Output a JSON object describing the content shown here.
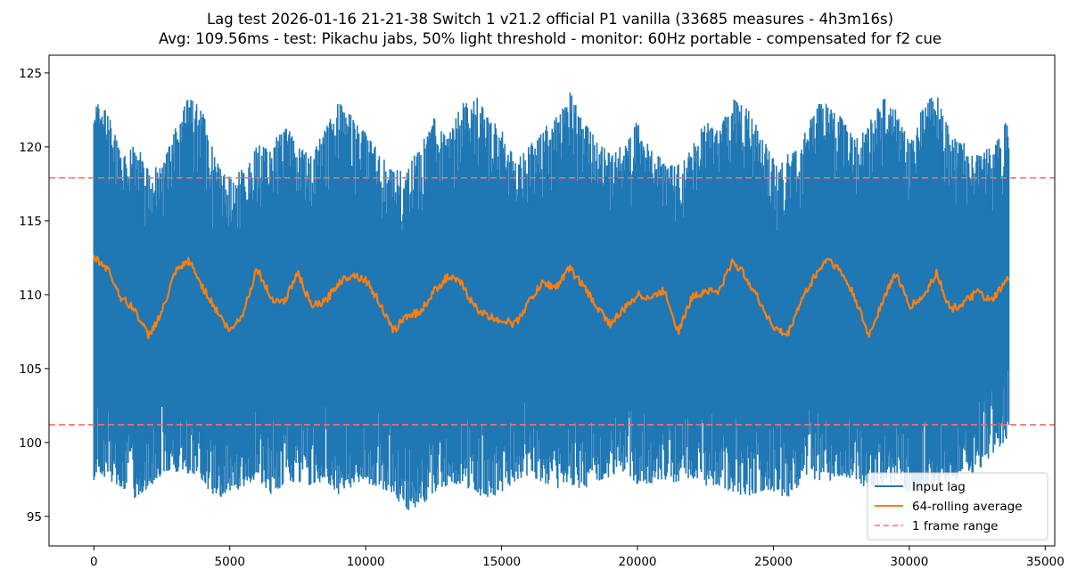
{
  "chart_data": {
    "type": "line",
    "title": "Lag test 2026-01-16 21-21-38 Switch 1 v21.2 official P1 vanilla (33685 measures - 4h3m16s)",
    "subtitle": "Avg: 109.56ms - test: Pikachu jabs, 50% light threshold - monitor: 60Hz portable - compensated for f2 cue",
    "xlabel": "",
    "ylabel": "",
    "xlim": [
      -1650,
      35350
    ],
    "ylim": [
      93,
      126.2
    ],
    "x_ticks": [
      0,
      5000,
      10000,
      15000,
      20000,
      25000,
      30000,
      35000
    ],
    "x_tick_labels": [
      "0",
      "5000",
      "10000",
      "15000",
      "20000",
      "25000",
      "30000",
      "35000"
    ],
    "y_ticks": [
      95,
      100,
      105,
      110,
      115,
      120,
      125
    ],
    "y_tick_labels": [
      "95",
      "100",
      "105",
      "110",
      "115",
      "120",
      "125"
    ],
    "grid": false,
    "legend_position": "lower-right",
    "threshold_lines": {
      "name": "1 frame range",
      "values": [
        101.2,
        117.9
      ],
      "color": "#ff6b6b",
      "style": "dashed"
    },
    "series": [
      {
        "name": "Input lag",
        "color": "#1f77b4",
        "type": "envelope",
        "x": [
          0,
          500,
          1000,
          1500,
          2000,
          2500,
          3000,
          3500,
          4000,
          4500,
          5000,
          5500,
          6000,
          6500,
          7000,
          7500,
          8000,
          8500,
          9000,
          9500,
          10000,
          10500,
          11000,
          11500,
          12000,
          12500,
          13000,
          13500,
          14000,
          14500,
          15000,
          15500,
          16000,
          16500,
          17000,
          17500,
          18000,
          18500,
          19000,
          19500,
          20000,
          20500,
          21000,
          21500,
          22000,
          22500,
          23000,
          23500,
          24000,
          24500,
          25000,
          25500,
          26000,
          26500,
          27000,
          27500,
          28000,
          28500,
          29000,
          29500,
          30000,
          30500,
          31000,
          31500,
          32000,
          32500,
          33000,
          33685
        ],
        "max": [
          123.1,
          122.5,
          119.5,
          120.2,
          119.0,
          118.5,
          121.5,
          123.4,
          122.5,
          119.0,
          118.0,
          118.6,
          120.2,
          119.8,
          121.8,
          120.0,
          119.5,
          121.2,
          123.0,
          122.2,
          121.0,
          119.8,
          118.4,
          118.6,
          120.0,
          122.0,
          120.5,
          122.8,
          123.7,
          122.0,
          121.2,
          119.5,
          120.0,
          121.2,
          122.0,
          123.8,
          121.8,
          120.5,
          119.6,
          120.3,
          121.8,
          120.0,
          119.0,
          118.8,
          120.0,
          121.8,
          121.0,
          123.5,
          122.8,
          121.0,
          119.2,
          119.5,
          120.2,
          122.8,
          123.1,
          122.0,
          120.5,
          121.5,
          123.5,
          122.5,
          120.5,
          123.0,
          123.6,
          121.0,
          120.3,
          119.5,
          120.0,
          122.1
        ],
        "min": [
          97.3,
          97.5,
          97.0,
          96.2,
          96.8,
          97.8,
          98.0,
          97.9,
          97.2,
          96.2,
          96.5,
          97.0,
          97.5,
          96.5,
          97.1,
          97.3,
          97.0,
          97.5,
          96.5,
          96.7,
          97.2,
          97.0,
          96.4,
          95.4,
          95.6,
          96.6,
          97.0,
          97.2,
          96.5,
          96.2,
          96.5,
          97.3,
          97.8,
          97.0,
          96.8,
          97.2,
          96.8,
          97.3,
          97.5,
          97.8,
          97.0,
          97.2,
          97.5,
          97.2,
          97.6,
          97.0,
          96.8,
          96.7,
          96.2,
          96.5,
          96.7,
          96.2,
          97.2,
          97.5,
          97.3,
          97.8,
          97.2,
          96.8,
          97.0,
          97.3,
          96.5,
          96.8,
          97.0,
          97.2,
          97.6,
          97.9,
          99.0,
          100.3
        ]
      },
      {
        "name": "64-rolling average",
        "color": "#ff7f0e",
        "type": "line",
        "x": [
          0,
          500,
          1000,
          1500,
          2000,
          2500,
          3000,
          3500,
          4000,
          4500,
          5000,
          5500,
          6000,
          6500,
          7000,
          7500,
          8000,
          8500,
          9000,
          9500,
          10000,
          10500,
          11000,
          11500,
          12000,
          12500,
          13000,
          13500,
          14000,
          14500,
          15000,
          15500,
          16000,
          16500,
          17000,
          17500,
          18000,
          18500,
          19000,
          19500,
          20000,
          20500,
          21000,
          21500,
          22000,
          22500,
          23000,
          23500,
          24000,
          24500,
          25000,
          25500,
          26000,
          26500,
          27000,
          27500,
          28000,
          28500,
          29000,
          29500,
          30000,
          30500,
          31000,
          31500,
          32000,
          32500,
          33000,
          33685
        ],
        "values": [
          112.5,
          111.8,
          109.8,
          109.0,
          107.2,
          108.8,
          111.5,
          112.3,
          110.5,
          109.0,
          107.5,
          108.8,
          111.8,
          109.8,
          109.5,
          111.5,
          109.2,
          109.5,
          110.8,
          111.4,
          111.0,
          109.5,
          107.5,
          108.6,
          108.8,
          110.2,
          111.2,
          110.8,
          109.2,
          108.5,
          108.3,
          108.0,
          109.5,
          110.8,
          110.5,
          111.8,
          110.6,
          109.2,
          108.0,
          109.0,
          110.0,
          109.8,
          110.3,
          107.5,
          109.8,
          110.3,
          110.2,
          112.3,
          111.2,
          109.5,
          107.8,
          107.2,
          109.5,
          111.2,
          112.5,
          111.5,
          109.8,
          107.2,
          109.5,
          111.5,
          109.2,
          109.8,
          111.5,
          109.0,
          109.4,
          110.2,
          109.5,
          111.2
        ]
      }
    ]
  }
}
